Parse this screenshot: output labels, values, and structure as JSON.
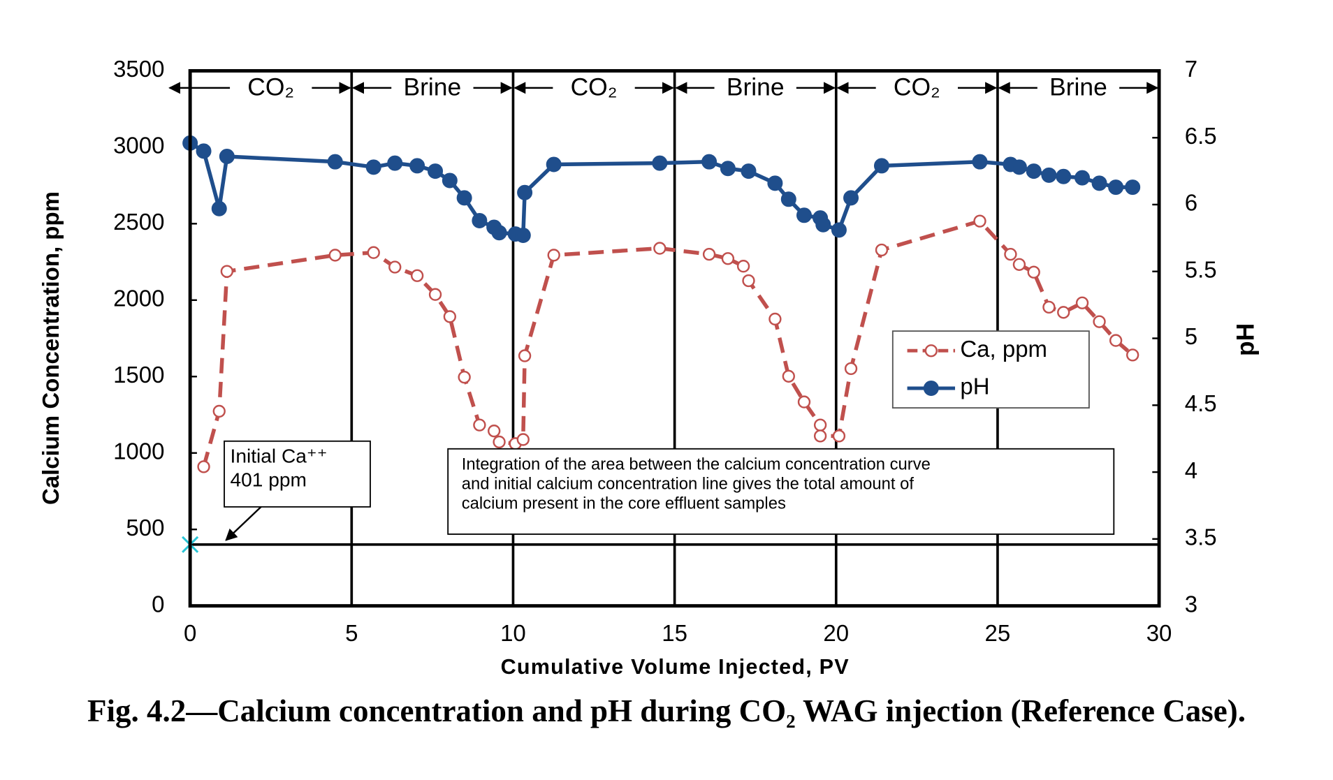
{
  "chart_data": {
    "type": "line",
    "title": "Fig. 4.2—Calcium concentration and pH during CO₂ WAG injection (Reference Case).",
    "xlabel": "Cumulative Volume Injected, PV",
    "ylabel": "Calcium Concentration, ppm",
    "y2label": "pH",
    "xlim": [
      0,
      30
    ],
    "xticks": [
      0,
      5,
      10,
      15,
      20,
      25,
      30
    ],
    "ylim": [
      0,
      3500
    ],
    "yticks": [
      0,
      500,
      1000,
      1500,
      2000,
      2500,
      3000,
      3500
    ],
    "y2lim": [
      3,
      7
    ],
    "y2ticks": [
      3,
      3.5,
      4,
      4.5,
      5,
      5.5,
      6,
      6.5,
      7
    ],
    "phases": [
      {
        "label": "CO₂",
        "range": [
          0,
          5
        ]
      },
      {
        "label": "Brine",
        "range": [
          5,
          10
        ]
      },
      {
        "label": "CO₂",
        "range": [
          10,
          15
        ]
      },
      {
        "label": "Brine",
        "range": [
          15,
          20
        ]
      },
      {
        "label": "CO₂",
        "range": [
          20,
          25
        ]
      },
      {
        "label": "Brine",
        "range": [
          25,
          30
        ]
      }
    ],
    "reference_line": 401,
    "series": [
      {
        "name": "Ca, ppm",
        "color": "#c0504d",
        "axis": "y",
        "x": [
          0.42,
          0.9,
          1.14,
          4.49,
          5.68,
          6.34,
          7.03,
          7.59,
          8.04,
          8.49,
          8.96,
          9.41,
          9.57,
          10.07,
          10.31,
          10.36,
          11.26,
          14.54,
          16.07,
          16.65,
          17.13,
          17.29,
          18.11,
          18.53,
          19.01,
          19.51,
          19.51,
          20.09,
          20.46,
          21.41,
          24.45,
          25.4,
          25.67,
          26.12,
          26.59,
          27.04,
          27.62,
          28.15,
          28.66,
          29.18
        ],
        "values": [
          910,
          1273,
          2188,
          2294,
          2311,
          2216,
          2160,
          2037,
          1892,
          1496,
          1183,
          1144,
          1072,
          1061,
          1088,
          1636,
          2294,
          2339,
          2300,
          2272,
          2222,
          2127,
          1876,
          1502,
          1334,
          1183,
          1111,
          1111,
          1552,
          2328,
          2517,
          2300,
          2233,
          2183,
          1954,
          1920,
          1982,
          1859,
          1736,
          1641
        ]
      },
      {
        "name": "pH",
        "color": "#1f4e8c",
        "axis": "y2",
        "x": [
          0,
          0.42,
          0.9,
          1.14,
          4.49,
          5.68,
          6.34,
          7.03,
          7.59,
          8.04,
          8.49,
          8.96,
          9.41,
          9.57,
          10.07,
          10.31,
          10.36,
          11.26,
          14.54,
          16.07,
          16.65,
          17.29,
          18.11,
          18.53,
          19.01,
          19.51,
          19.6,
          20.09,
          20.46,
          21.41,
          24.45,
          25.4,
          25.67,
          26.12,
          26.59,
          27.04,
          27.62,
          28.15,
          28.66,
          29.18
        ],
        "values": [
          6.46,
          6.4,
          5.97,
          6.36,
          6.32,
          6.28,
          6.31,
          6.29,
          6.25,
          6.18,
          6.05,
          5.88,
          5.83,
          5.79,
          5.78,
          5.77,
          6.09,
          6.3,
          6.31,
          6.32,
          6.27,
          6.25,
          6.16,
          6.04,
          5.92,
          5.9,
          5.85,
          5.81,
          6.05,
          6.29,
          6.32,
          6.3,
          6.28,
          6.25,
          6.22,
          6.21,
          6.2,
          6.16,
          6.13,
          6.13
        ]
      }
    ],
    "annotations": [
      {
        "lines": [
          "Initial Ca⁺⁺",
          "401 ppm"
        ]
      },
      {
        "lines": [
          "Integration of the area between the calcium concentration curve",
          "and initial calcium concentration line gives the total amount of",
          "calcium present in the core effluent samples"
        ]
      }
    ]
  }
}
